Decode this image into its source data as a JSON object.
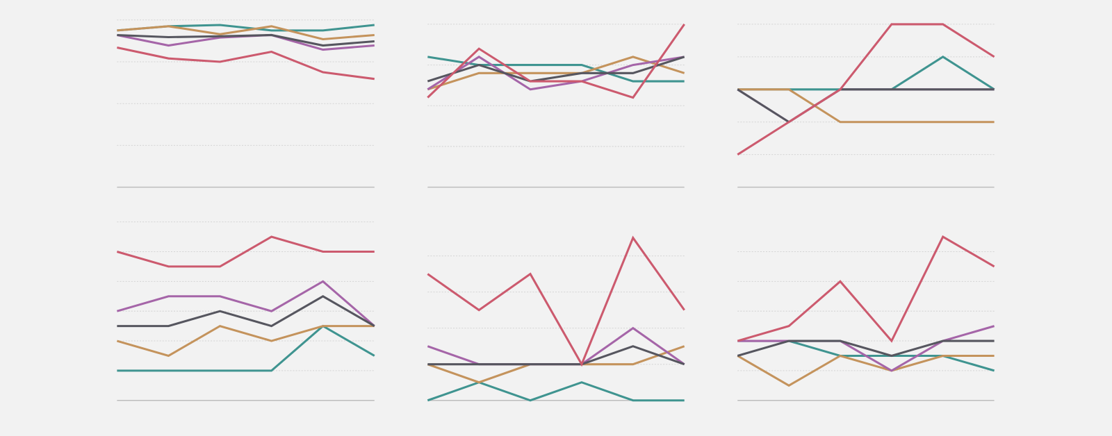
{
  "chart_data": [
    {
      "type": "line",
      "categories": [
        null,
        null,
        null,
        null,
        null,
        null
      ],
      "ylim": [
        0,
        4
      ],
      "yticks": [
        0,
        1,
        2,
        3,
        4
      ],
      "grid": true,
      "series": [
        {
          "color": "#3f9490",
          "values": [
            3.75,
            3.85,
            3.88,
            3.75,
            3.75,
            3.88
          ]
        },
        {
          "color": "#c4935c",
          "values": [
            3.75,
            3.85,
            3.66,
            3.85,
            3.54,
            3.64
          ]
        },
        {
          "color": "#a565a8",
          "values": [
            3.64,
            3.39,
            3.58,
            3.64,
            3.29,
            3.39
          ]
        },
        {
          "color": "#56565f",
          "values": [
            3.64,
            3.59,
            3.61,
            3.64,
            3.39,
            3.49
          ]
        },
        {
          "color": "#cc5a6e",
          "values": [
            3.34,
            3.08,
            3.0,
            3.24,
            2.75,
            2.59
          ]
        }
      ]
    },
    {
      "type": "line",
      "categories": [
        null,
        null,
        null,
        null,
        null,
        null
      ],
      "ylim": [
        0,
        4
      ],
      "yticks": [
        0,
        1,
        2,
        3,
        4
      ],
      "grid": true,
      "series": [
        {
          "color": "#3f9490",
          "values": [
            3.2,
            3.0,
            3.0,
            3.0,
            2.6,
            2.6
          ]
        },
        {
          "color": "#c4935c",
          "values": [
            2.4,
            2.8,
            2.8,
            2.8,
            3.2,
            2.8
          ]
        },
        {
          "color": "#a565a8",
          "values": [
            2.4,
            3.2,
            2.4,
            2.6,
            3.0,
            3.2
          ]
        },
        {
          "color": "#56565f",
          "values": [
            2.6,
            3.0,
            2.6,
            2.8,
            2.8,
            3.2
          ]
        },
        {
          "color": "#cc5a6e",
          "values": [
            2.2,
            3.4,
            2.6,
            2.6,
            2.2,
            4.0
          ]
        }
      ]
    },
    {
      "type": "line",
      "categories": [
        null,
        null,
        null,
        null,
        null,
        null
      ],
      "ylim": [
        0,
        5
      ],
      "yticks": [
        0,
        1,
        2,
        3,
        4,
        5
      ],
      "grid": true,
      "series": [
        {
          "color": "#3f9490",
          "values": [
            3,
            3,
            3,
            3,
            4,
            3
          ]
        },
        {
          "color": "#c4935c",
          "values": [
            3,
            3,
            2,
            2,
            2,
            2
          ]
        },
        {
          "color": "#a565a8",
          "values": [
            3,
            2,
            3,
            3,
            3,
            3
          ]
        },
        {
          "color": "#56565f",
          "values": [
            3,
            2,
            3,
            3,
            3,
            3
          ]
        },
        {
          "color": "#cc5a6e",
          "values": [
            1,
            2,
            3,
            5,
            5,
            4
          ]
        }
      ]
    },
    {
      "type": "line",
      "categories": [
        null,
        null,
        null,
        null,
        null,
        null
      ],
      "ylim": [
        0,
        12
      ],
      "yticks": [
        0,
        2,
        4,
        6,
        8,
        10,
        12
      ],
      "grid": true,
      "series": [
        {
          "color": "#3f9490",
          "values": [
            2,
            2,
            2,
            2,
            5,
            3
          ]
        },
        {
          "color": "#c4935c",
          "values": [
            4,
            3,
            5,
            4,
            5,
            5
          ]
        },
        {
          "color": "#a565a8",
          "values": [
            6,
            7,
            7,
            6,
            8,
            5
          ]
        },
        {
          "color": "#56565f",
          "values": [
            5,
            5,
            6,
            5,
            7,
            5
          ]
        },
        {
          "color": "#cc5a6e",
          "values": [
            10,
            9,
            9,
            11,
            10,
            10
          ]
        }
      ]
    },
    {
      "type": "line",
      "categories": [
        null,
        null,
        null,
        null,
        null,
        null
      ],
      "ylim": [
        0,
        9
      ],
      "yticks": [
        0,
        2,
        4,
        6,
        8
      ],
      "grid": true,
      "series": [
        {
          "color": "#3f9490",
          "values": [
            0,
            1,
            0,
            1,
            0,
            0
          ]
        },
        {
          "color": "#c4935c",
          "values": [
            2,
            1,
            2,
            2,
            2,
            3
          ]
        },
        {
          "color": "#a565a8",
          "values": [
            3,
            2,
            2,
            2,
            4,
            2
          ]
        },
        {
          "color": "#56565f",
          "values": [
            2,
            2,
            2,
            2,
            3,
            2
          ]
        },
        {
          "color": "#cc5a6e",
          "values": [
            7,
            5,
            7,
            2,
            9,
            5
          ]
        }
      ]
    },
    {
      "type": "line",
      "categories": [
        null,
        null,
        null,
        null,
        null,
        null
      ],
      "ylim": [
        0,
        11
      ],
      "yticks": [
        0,
        2,
        4,
        6,
        8,
        10
      ],
      "grid": true,
      "series": [
        {
          "color": "#3f9490",
          "values": [
            4,
            4,
            3,
            3,
            3,
            2
          ]
        },
        {
          "color": "#c4935c",
          "values": [
            3,
            1,
            3,
            2,
            3,
            3
          ]
        },
        {
          "color": "#a565a8",
          "values": [
            4,
            4,
            4,
            2,
            4,
            5
          ]
        },
        {
          "color": "#56565f",
          "values": [
            3,
            4,
            4,
            3,
            4,
            4
          ]
        },
        {
          "color": "#cc5a6e",
          "values": [
            4,
            5,
            8,
            4,
            11,
            9
          ]
        }
      ]
    }
  ]
}
